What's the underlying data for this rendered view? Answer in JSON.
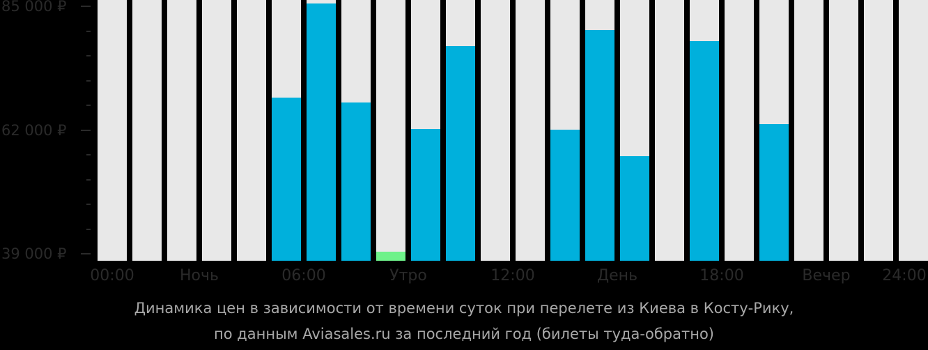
{
  "colors": {
    "background": "#000000",
    "slot": "#e8e8e8",
    "bar": "#00b0dc",
    "cheapest_bar": "#6ff28a",
    "axis_text": "#2a2a2a",
    "caption_text": "#a8a8a8"
  },
  "yaxis": {
    "labels": [
      {
        "text": "85 000 ₽",
        "value": 85000
      },
      {
        "text": "62 000 ₽",
        "value": 62000
      },
      {
        "text": "39 000 ₽",
        "value": 39000
      }
    ]
  },
  "xaxis": {
    "labels": [
      {
        "text": "00:00",
        "slot": 0
      },
      {
        "text": "Ночь",
        "slot": 2.5
      },
      {
        "text": "06:00",
        "slot": 5.5
      },
      {
        "text": "Утро",
        "slot": 8.5
      },
      {
        "text": "12:00",
        "slot": 11.5
      },
      {
        "text": "День",
        "slot": 14.5
      },
      {
        "text": "18:00",
        "slot": 17.5
      },
      {
        "text": "Вечер",
        "slot": 20.5
      },
      {
        "text": "24:00",
        "slot": 23.5
      }
    ]
  },
  "caption": {
    "line1": "Динамика цен в зависимости от времени суток при перелете из Киева в Косту-Рику,",
    "line2": "по данным Aviasales.ru за последний год (билеты туда-обратно)"
  },
  "chart_data": {
    "type": "bar",
    "title": "Динамика цен в зависимости от времени суток при перелете из Киева в Косту-Рику, по данным Aviasales.ru за последний год (билеты туда-обратно)",
    "xlabel": "",
    "ylabel": "",
    "ylim": [
      39000,
      85000
    ],
    "yticks": [
      39000,
      62000,
      85000
    ],
    "ytick_labels": [
      "39 000 ₽",
      "62 000 ₽",
      "85 000 ₽"
    ],
    "xtick_labels": [
      "00:00",
      "Ночь",
      "06:00",
      "Утро",
      "12:00",
      "День",
      "18:00",
      "Вечер",
      "24:00"
    ],
    "categories": [
      "00",
      "01",
      "02",
      "03",
      "04",
      "05",
      "06",
      "07",
      "08",
      "09",
      "10",
      "11",
      "12",
      "13",
      "14",
      "15",
      "16",
      "17",
      "18",
      "19",
      "20",
      "21",
      "22",
      "23"
    ],
    "values": [
      null,
      null,
      null,
      null,
      null,
      68000,
      85500,
      67100,
      39400,
      62200,
      77600,
      null,
      null,
      62100,
      80600,
      57100,
      null,
      78500,
      null,
      63100,
      null,
      null,
      null,
      null
    ],
    "highlight": {
      "category": "08",
      "value": 39400,
      "color": "#6ff28a",
      "note": "cheapest"
    },
    "grid": false,
    "legend": null
  }
}
